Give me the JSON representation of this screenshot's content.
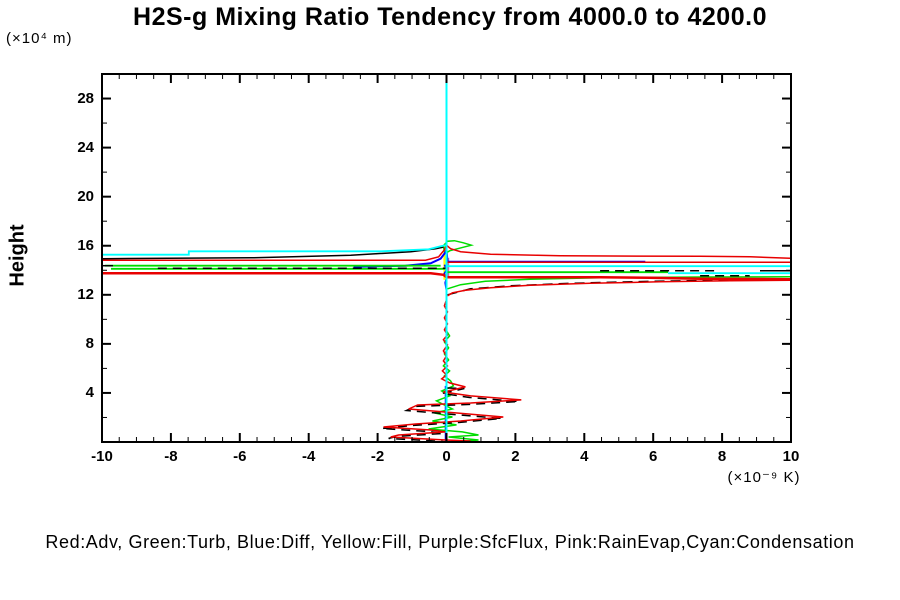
{
  "header": {
    "title": "H2S-g Mixing Ratio Tendency from 4000.0 to 4200.0"
  },
  "axes": {
    "y_axis_label": "Height",
    "y_axis_unit": "(×10⁴ m)",
    "x_axis_unit": "(×10⁻⁹ K)"
  },
  "legend_line": "Red:Adv, Green:Turb, Blue:Diff, Yellow:Fill, Purple:SfcFlux, Pink:RainEvap,Cyan:Condensation",
  "chart_data": {
    "type": "line",
    "title": "H2S-g Mixing Ratio Tendency from 4000.0 to 4200.0",
    "xlabel": "(×10⁻⁹ K)",
    "ylabel": "Height",
    "ylabel_unit": "(×10⁴ m)",
    "xlim": [
      -10,
      10
    ],
    "ylim": [
      0,
      30
    ],
    "grid": false,
    "legend_position": "bottom-text-line",
    "xticks": {
      "major": [
        -10,
        -8,
        -6,
        -4,
        -2,
        0,
        2,
        4,
        6,
        8,
        10
      ],
      "minor_step": 0.5
    },
    "yticks": {
      "major": [
        4,
        8,
        12,
        16,
        20,
        24,
        28
      ],
      "minor_step": 2
    },
    "colors": {
      "red": "#e80000",
      "green": "#00dc00",
      "blue": "#0000ff",
      "yellow": "#ffff00",
      "purple": "#b478b4",
      "pink": "#ff96c8",
      "cyan": "#00ffff",
      "overlay": "#000000"
    },
    "series": [
      {
        "name": "Fill",
        "color": "#ffff00",
        "segments": [
          {
            "w": 2,
            "pts": [
              [
                -0.06,
                16.0
              ],
              [
                -0.06,
                13.22
              ]
            ]
          }
        ]
      },
      {
        "name": "SfcFlux",
        "color": "#b478b4",
        "segments": [
          {
            "w": 2,
            "pts": [
              [
                0.05,
                15.02
              ],
              [
                0.05,
                13.39
              ]
            ]
          }
        ]
      },
      {
        "name": "RainEvap",
        "color": "#ff96c8",
        "segments": [
          {
            "w": 1,
            "pts": [
              [
                0.01,
                14.0
              ],
              [
                0.01,
                13.5
              ]
            ]
          }
        ]
      },
      {
        "name": "Diff",
        "color": "#0000ff",
        "segments": [
          {
            "w": 2,
            "pts": [
              [
                -2.7,
                14.29
              ],
              [
                -1.19,
                14.37
              ],
              [
                -0.46,
                14.57
              ],
              [
                -0.17,
                14.94
              ],
              [
                -0.06,
                15.35
              ],
              [
                0,
                15.67
              ],
              [
                0.03,
                14.69
              ],
              [
                5.77,
                14.69
              ]
            ]
          },
          {
            "w": 1.5,
            "pts": [
              [
                -0.06,
                14.45
              ],
              [
                0,
                14.04
              ],
              [
                -0.07,
                13.71
              ],
              [
                0,
                13.39
              ],
              [
                -0.04,
                12.98
              ],
              [
                -0.01,
                12.41
              ]
            ]
          },
          {
            "w": 1.5,
            "pts": [
              [
                -0.03,
                4.57
              ],
              [
                -0.03,
                0
              ]
            ]
          }
        ]
      },
      {
        "name": "Turb",
        "color": "#00dc00",
        "segments": [
          {
            "w": 1.8,
            "pts": [
              [
                -9.91,
                14.37
              ],
              [
                -0.17,
                14.37
              ]
            ]
          },
          {
            "w": 1.8,
            "pts": [
              [
                -9.74,
                14.12
              ],
              [
                0,
                14.12
              ]
            ]
          },
          {
            "w": 1.5,
            "pts": [
              [
                -0.06,
                15.51
              ],
              [
                -0.09,
                16.0
              ],
              [
                0.03,
                16.37
              ],
              [
                0.23,
                16.41
              ],
              [
                0.49,
                16.24
              ],
              [
                0.72,
                16.04
              ],
              [
                0.38,
                15.8
              ],
              [
                0.09,
                15.59
              ],
              [
                0,
                15.43
              ]
            ]
          },
          {
            "w": 1.8,
            "pts": [
              [
                0,
                13.84
              ],
              [
                6.43,
                13.84
              ]
            ]
          },
          {
            "w": 1.5,
            "pts": [
              [
                0.03,
                12.49
              ],
              [
                0.41,
                12.82
              ],
              [
                1.13,
                13.1
              ],
              [
                2.43,
                13.27
              ],
              [
                4.46,
                13.39
              ],
              [
                7.36,
                13.45
              ],
              [
                9.97,
                13.47
              ]
            ]
          },
          {
            "w": 1.5,
            "pts": [
              [
                0,
                9.06
              ],
              [
                0.09,
                8.65
              ],
              [
                -0.06,
                8.16
              ],
              [
                0.06,
                7.67
              ],
              [
                -0.06,
                7.18
              ],
              [
                0.06,
                6.69
              ],
              [
                -0.09,
                6.2
              ],
              [
                0.09,
                5.8
              ],
              [
                -0.06,
                5.39
              ],
              [
                0.12,
                4.98
              ],
              [
                0.2,
                4.57
              ],
              [
                -0.14,
                4.16
              ],
              [
                0.09,
                3.76
              ],
              [
                -0.29,
                3.35
              ],
              [
                -0.06,
                3.02
              ],
              [
                0.17,
                2.69
              ],
              [
                -0.35,
                2.37
              ],
              [
                0.17,
                2.04
              ],
              [
                -0.41,
                1.71
              ],
              [
                0.29,
                1.39
              ],
              [
                -0.52,
                1.06
              ],
              [
                0.46,
                0.82
              ],
              [
                0.93,
                0.57
              ],
              [
                0.06,
                0.41
              ],
              [
                0.93,
                0.16
              ],
              [
                0.26,
                0
              ]
            ]
          }
        ]
      },
      {
        "name": "overlay-black",
        "color": "#000000",
        "segments": [
          {
            "w": 1.5,
            "pts": [
              [
                -9.97,
                14.94
              ],
              [
                -5.68,
                15.02
              ],
              [
                -2.78,
                15.22
              ],
              [
                -1.04,
                15.51
              ],
              [
                -0.32,
                15.76
              ],
              [
                -0.09,
                15.88
              ]
            ]
          },
          {
            "w": 1.5,
            "pts": [
              [
                -9.97,
                14.37
              ],
              [
                -9.68,
                14.37
              ]
            ]
          },
          {
            "w": 1.5,
            "dash": "9 6",
            "pts": [
              [
                -8.38,
                14.16
              ],
              [
                0,
                14.16
              ]
            ]
          },
          {
            "w": 1.5,
            "dash": "9 6",
            "pts": [
              [
                4.46,
                13.96
              ],
              [
                7.94,
                13.96
              ]
            ]
          },
          {
            "w": 1.5,
            "pts": [
              [
                9.1,
                13.96
              ],
              [
                9.97,
                13.96
              ]
            ]
          },
          {
            "w": 1.5,
            "dash": "9 6",
            "pts": [
              [
                7.36,
                13.55
              ],
              [
                8.8,
                13.55
              ]
            ]
          },
          {
            "w": 1.5,
            "dash": "10 6",
            "pts": [
              [
                0.03,
                12.0
              ],
              [
                0.7,
                12.49
              ],
              [
                1.86,
                12.73
              ],
              [
                3.59,
                12.94
              ],
              [
                5.91,
                13.1
              ],
              [
                7.94,
                13.18
              ],
              [
                9.97,
                13.27
              ]
            ]
          },
          {
            "w": 1.5,
            "dash": "9 6",
            "pts": [
              [
                0.03,
                4.4
              ],
              [
                0.52,
                4.36
              ],
              [
                0.14,
                4.12
              ],
              [
                -0.12,
                3.96
              ],
              [
                0.67,
                3.63
              ],
              [
                2.1,
                3.3
              ],
              [
                0.6,
                3.06
              ],
              [
                -0.9,
                2.9
              ],
              [
                -1.16,
                2.57
              ],
              [
                0.2,
                2.24
              ],
              [
                1.6,
                1.92
              ],
              [
                0.35,
                1.59
              ],
              [
                -0.95,
                1.35
              ],
              [
                -1.88,
                1.1
              ],
              [
                -0.52,
                0.86
              ],
              [
                -0.09,
                0.7
              ],
              [
                -1.45,
                0.45
              ],
              [
                -1.68,
                0.29
              ],
              [
                -0.09,
                0.04
              ]
            ]
          }
        ]
      },
      {
        "name": "Adv",
        "color": "#e80000",
        "segments": [
          {
            "w": 1.5,
            "pts": [
              [
                -9.97,
                14.82
              ],
              [
                -0.61,
                14.82
              ],
              [
                -0.23,
                15.1
              ],
              [
                -0.06,
                15.67
              ],
              [
                0,
                16.04
              ],
              [
                0.12,
                15.76
              ],
              [
                0.41,
                15.51
              ],
              [
                1.28,
                15.31
              ],
              [
                3.3,
                15.18
              ],
              [
                7.36,
                15.14
              ],
              [
                8.81,
                15.1
              ],
              [
                9.97,
                14.98
              ]
            ]
          },
          {
            "w": 1.5,
            "pts": [
              [
                0,
                14.65
              ],
              [
                9.97,
                14.65
              ]
            ]
          },
          {
            "w": 2.5,
            "pts": [
              [
                -9.97,
                13.76
              ],
              [
                -0.46,
                13.76
              ],
              [
                -0.09,
                13.63
              ],
              [
                0,
                13.43
              ],
              [
                4.46,
                13.43
              ],
              [
                5.91,
                13.39
              ],
              [
                7.36,
                13.31
              ],
              [
                9.97,
                13.27
              ]
            ]
          },
          {
            "w": 1.5,
            "pts": [
              [
                0.03,
                11.92
              ],
              [
                0.17,
                12.16
              ],
              [
                0.55,
                12.37
              ],
              [
                1.28,
                12.57
              ],
              [
                2.43,
                12.78
              ],
              [
                4.17,
                12.94
              ],
              [
                6.2,
                13.06
              ],
              [
                8.23,
                13.14
              ],
              [
                9.97,
                13.18
              ]
            ]
          },
          {
            "w": 1.5,
            "pts": [
              [
                0,
                11.59
              ],
              [
                -0.06,
                11.1
              ],
              [
                0.03,
                10.61
              ],
              [
                -0.06,
                10.12
              ],
              [
                0.03,
                9.63
              ],
              [
                -0.06,
                9.14
              ],
              [
                0.03,
                8.73
              ],
              [
                -0.09,
                8.33
              ],
              [
                0.03,
                7.92
              ],
              [
                -0.09,
                7.43
              ],
              [
                0,
                7.02
              ],
              [
                -0.09,
                6.61
              ],
              [
                0.03,
                6.2
              ],
              [
                -0.12,
                5.8
              ],
              [
                0,
                5.47
              ],
              [
                -0.14,
                5.14
              ],
              [
                0.09,
                4.82
              ],
              [
                0.55,
                4.49
              ],
              [
                0.17,
                4.24
              ],
              [
                -0.09,
                4.08
              ],
              [
                0.7,
                3.76
              ],
              [
                2.17,
                3.43
              ],
              [
                0.7,
                3.18
              ],
              [
                -0.84,
                3.02
              ],
              [
                -1.1,
                2.69
              ],
              [
                0.26,
                2.37
              ],
              [
                1.65,
                2.04
              ],
              [
                0.41,
                1.71
              ],
              [
                -0.9,
                1.47
              ],
              [
                -1.83,
                1.22
              ],
              [
                -0.46,
                0.98
              ],
              [
                -0.03,
                0.82
              ],
              [
                -1.39,
                0.57
              ],
              [
                -1.62,
                0.41
              ],
              [
                -0.03,
                0.16
              ],
              [
                0.7,
                0.08
              ]
            ]
          }
        ]
      },
      {
        "name": "Condensation",
        "color": "#00ffff",
        "segments": [
          {
            "w": 2,
            "pts": [
              [
                0,
                30
              ],
              [
                0,
                0
              ]
            ]
          },
          {
            "w": 1.8,
            "pts": [
              [
                -9.97,
                15.27
              ],
              [
                -7.48,
                15.27
              ],
              [
                -7.48,
                15.55
              ],
              [
                -1.91,
                15.55
              ],
              [
                -0.52,
                15.71
              ],
              [
                -0.17,
                15.96
              ],
              [
                -0.03,
                16.04
              ]
            ]
          },
          {
            "w": 1.8,
            "pts": [
              [
                0,
                14.33
              ],
              [
                9.97,
                14.33
              ]
            ]
          },
          {
            "w": 1.8,
            "pts": [
              [
                6.43,
                13.76
              ],
              [
                9.97,
                13.76
              ]
            ]
          }
        ]
      }
    ]
  }
}
